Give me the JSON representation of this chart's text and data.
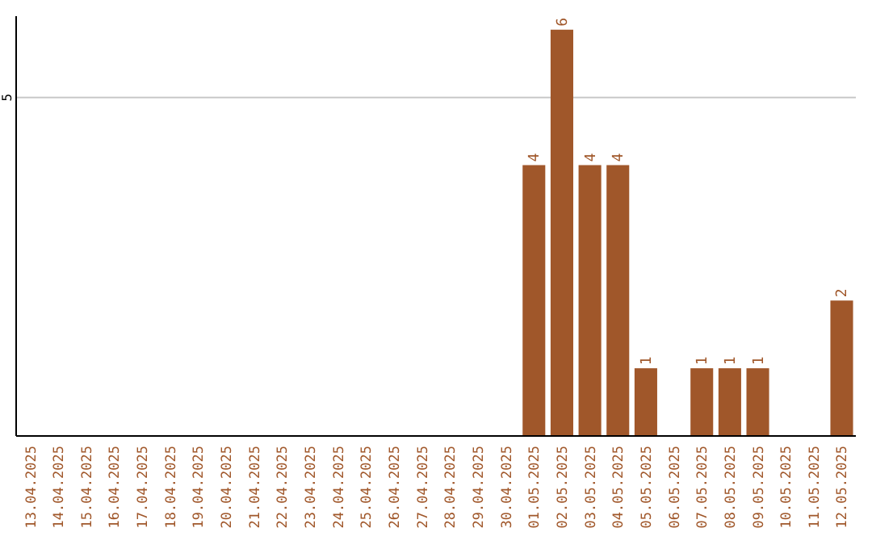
{
  "chart_data": {
    "type": "bar",
    "categories": [
      "13.04.2025",
      "14.04.2025",
      "15.04.2025",
      "16.04.2025",
      "17.04.2025",
      "18.04.2025",
      "19.04.2025",
      "20.04.2025",
      "21.04.2025",
      "22.04.2025",
      "23.04.2025",
      "24.04.2025",
      "25.04.2025",
      "26.04.2025",
      "27.04.2025",
      "28.04.2025",
      "29.04.2025",
      "30.04.2025",
      "01.05.2025",
      "02.05.2025",
      "03.05.2025",
      "04.05.2025",
      "05.05.2025",
      "06.05.2025",
      "07.05.2025",
      "08.05.2025",
      "09.05.2025",
      "10.05.2025",
      "11.05.2025",
      "12.05.2025"
    ],
    "values": [
      null,
      null,
      null,
      null,
      null,
      null,
      null,
      null,
      null,
      null,
      null,
      null,
      null,
      null,
      null,
      null,
      null,
      null,
      4,
      6,
      4,
      4,
      1,
      null,
      1,
      1,
      1,
      null,
      null,
      2
    ],
    "data_labels": true,
    "color": "#a0572a",
    "ylim": [
      0,
      6.2
    ],
    "ref_lines": [
      {
        "axis": "y",
        "value": 5,
        "label": "5",
        "color": "#c8c8c8"
      }
    ]
  }
}
